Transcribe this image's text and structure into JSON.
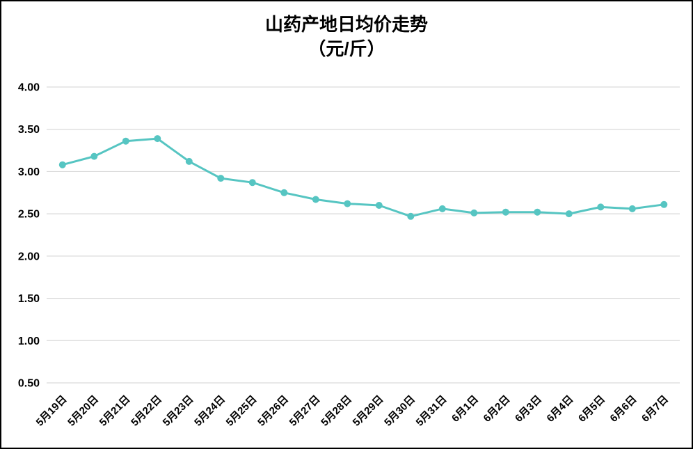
{
  "chart_data": {
    "type": "line",
    "title": "山药产地日均价走势",
    "subtitle": "（元/斤）",
    "categories": [
      "5月19日",
      "5月20日",
      "5月21日",
      "5月22日",
      "5月23日",
      "5月24日",
      "5月25日",
      "5月26日",
      "5月27日",
      "5月28日",
      "5月29日",
      "5月30日",
      "5月31日",
      "6月1日",
      "6月2日",
      "6月3日",
      "6月4日",
      "6月5日",
      "6月6日",
      "6月7日"
    ],
    "values": [
      3.08,
      3.18,
      3.36,
      3.39,
      3.12,
      2.92,
      2.87,
      2.75,
      2.67,
      2.62,
      2.6,
      2.47,
      2.56,
      2.51,
      2.52,
      2.52,
      2.5,
      2.58,
      2.56,
      2.61
    ],
    "ylim": [
      0.5,
      4.0
    ],
    "ytick_step": 0.5,
    "ytick_labels": [
      "0.50",
      "1.00",
      "1.50",
      "2.00",
      "2.50",
      "3.00",
      "3.50",
      "4.00"
    ],
    "grid": true,
    "legend_position": "none",
    "line_color": "#56c5c2",
    "marker_color": "#56c5c2",
    "grid_color": "#d9d9d9",
    "text_color": "#000000"
  }
}
